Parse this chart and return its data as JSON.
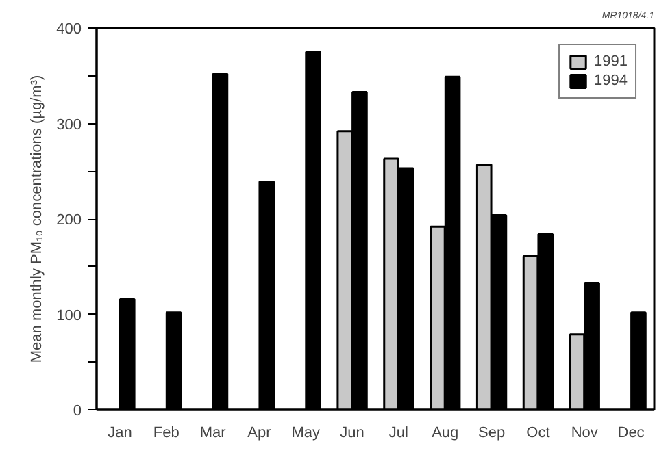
{
  "chart_data": {
    "type": "bar",
    "ylabel": "Mean monthly PM₁₀ concentrations (µg/m³)",
    "categories": [
      "Jan",
      "Feb",
      "Mar",
      "Apr",
      "May",
      "Jun",
      "Jul",
      "Aug",
      "Sep",
      "Oct",
      "Nov",
      "Dec"
    ],
    "series": [
      {
        "name": "1991",
        "color": "#c8c8c8",
        "values": [
          null,
          null,
          null,
          null,
          null,
          292,
          263,
          192,
          257,
          161,
          79,
          null
        ]
      },
      {
        "name": "1994",
        "color": "#000000",
        "values": [
          116,
          102,
          352,
          239,
          375,
          333,
          253,
          349,
          204,
          184,
          133,
          102
        ]
      }
    ],
    "ylim": [
      0,
      400
    ],
    "yticks": [
      0,
      {
        "value": 50,
        "label": null
      },
      100,
      {
        "value": 150,
        "label": null
      },
      200,
      {
        "value": 250,
        "label": null
      },
      300,
      {
        "value": 350,
        "label": null
      },
      400
    ],
    "grid": false,
    "legend": "top right",
    "annotations": [
      "MR1018/4.1"
    ]
  }
}
